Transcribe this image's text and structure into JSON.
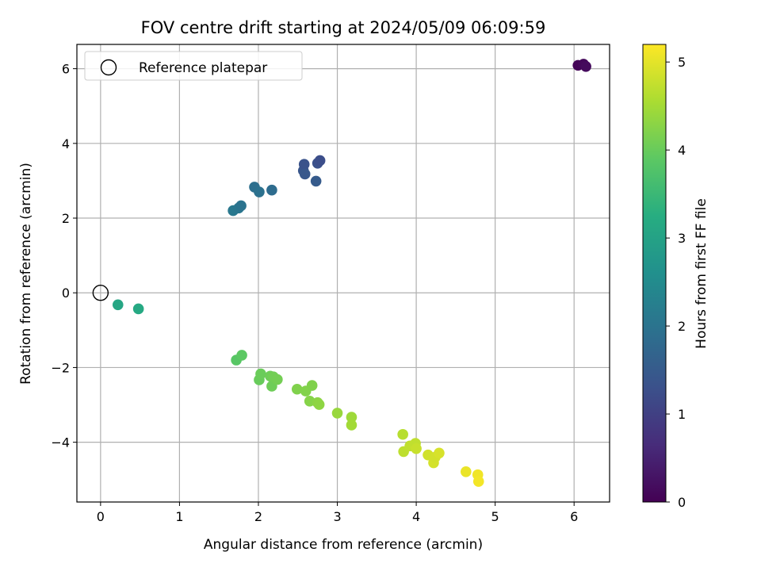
{
  "chart_data": {
    "type": "scatter",
    "title": "FOV centre drift starting at 2024/05/09 06:09:59",
    "xlabel": "Angular distance from reference (arcmin)",
    "ylabel": "Rotation from reference (arcmin)",
    "xlim": [
      -0.3,
      6.45
    ],
    "ylim": [
      -5.6,
      6.65
    ],
    "xticks": [
      0,
      1,
      2,
      3,
      4,
      5,
      6
    ],
    "yticks": [
      -4,
      -2,
      0,
      2,
      4,
      6
    ],
    "xtick_labels": [
      "0",
      "1",
      "2",
      "3",
      "4",
      "5",
      "6"
    ],
    "ytick_labels": [
      "−4",
      "−2",
      "0",
      "2",
      "4",
      "6"
    ],
    "grid": true,
    "legend": {
      "placement": "upper-left",
      "entries": [
        "Reference platepar"
      ]
    },
    "reference_point": {
      "x": 0,
      "y": 0
    },
    "colorbar": {
      "label": "Hours from first FF file",
      "range": [
        0,
        5.2
      ],
      "ticks": [
        0,
        1,
        2,
        3,
        4,
        5
      ],
      "tick_labels": [
        "0",
        "1",
        "2",
        "3",
        "4",
        "5"
      ],
      "colormap": "viridis"
    },
    "points": [
      {
        "x": 6.05,
        "y": 6.09,
        "h": 0.05
      },
      {
        "x": 6.12,
        "y": 6.12,
        "h": 0.1
      },
      {
        "x": 6.15,
        "y": 6.06,
        "h": 0.15
      },
      {
        "x": 2.57,
        "y": 3.27,
        "h": 1.4
      },
      {
        "x": 2.58,
        "y": 3.44,
        "h": 1.35
      },
      {
        "x": 2.59,
        "y": 3.18,
        "h": 1.45
      },
      {
        "x": 2.73,
        "y": 2.99,
        "h": 1.5
      },
      {
        "x": 2.75,
        "y": 3.47,
        "h": 1.3
      },
      {
        "x": 2.78,
        "y": 3.54,
        "h": 1.25
      },
      {
        "x": 1.95,
        "y": 2.83,
        "h": 1.9
      },
      {
        "x": 2.01,
        "y": 2.7,
        "h": 1.95
      },
      {
        "x": 2.17,
        "y": 2.75,
        "h": 1.85
      },
      {
        "x": 1.68,
        "y": 2.2,
        "h": 2.1
      },
      {
        "x": 1.75,
        "y": 2.27,
        "h": 2.05
      },
      {
        "x": 1.78,
        "y": 2.33,
        "h": 2.0
      },
      {
        "x": 0.22,
        "y": -0.32,
        "h": 3.1
      },
      {
        "x": 0.48,
        "y": -0.43,
        "h": 3.15
      },
      {
        "x": 1.72,
        "y": -1.8,
        "h": 3.85
      },
      {
        "x": 1.79,
        "y": -1.67,
        "h": 3.9
      },
      {
        "x": 2.01,
        "y": -2.33,
        "h": 4.0
      },
      {
        "x": 2.03,
        "y": -2.17,
        "h": 4.02
      },
      {
        "x": 2.15,
        "y": -2.23,
        "h": 4.05
      },
      {
        "x": 2.17,
        "y": -2.5,
        "h": 4.05
      },
      {
        "x": 2.19,
        "y": -2.25,
        "h": 4.08
      },
      {
        "x": 2.24,
        "y": -2.32,
        "h": 4.1
      },
      {
        "x": 2.49,
        "y": -2.58,
        "h": 4.2
      },
      {
        "x": 2.6,
        "y": -2.63,
        "h": 4.22
      },
      {
        "x": 2.65,
        "y": -2.9,
        "h": 4.25
      },
      {
        "x": 2.68,
        "y": -2.48,
        "h": 4.2
      },
      {
        "x": 2.75,
        "y": -2.94,
        "h": 4.3
      },
      {
        "x": 2.77,
        "y": -2.99,
        "h": 4.32
      },
      {
        "x": 3.0,
        "y": -3.22,
        "h": 4.4
      },
      {
        "x": 3.18,
        "y": -3.33,
        "h": 4.45
      },
      {
        "x": 3.18,
        "y": -3.54,
        "h": 4.48
      },
      {
        "x": 3.83,
        "y": -3.79,
        "h": 4.65
      },
      {
        "x": 3.84,
        "y": -4.25,
        "h": 4.7
      },
      {
        "x": 3.92,
        "y": -4.1,
        "h": 4.72
      },
      {
        "x": 3.98,
        "y": -4.08,
        "h": 4.75
      },
      {
        "x": 3.99,
        "y": -4.03,
        "h": 4.72
      },
      {
        "x": 4.0,
        "y": -4.17,
        "h": 4.78
      },
      {
        "x": 4.15,
        "y": -4.34,
        "h": 4.85
      },
      {
        "x": 4.22,
        "y": -4.55,
        "h": 4.88
      },
      {
        "x": 4.24,
        "y": -4.4,
        "h": 4.86
      },
      {
        "x": 4.29,
        "y": -4.29,
        "h": 4.9
      },
      {
        "x": 4.63,
        "y": -4.79,
        "h": 5.05
      },
      {
        "x": 4.78,
        "y": -4.87,
        "h": 5.1
      },
      {
        "x": 4.79,
        "y": -5.05,
        "h": 5.12
      }
    ]
  }
}
